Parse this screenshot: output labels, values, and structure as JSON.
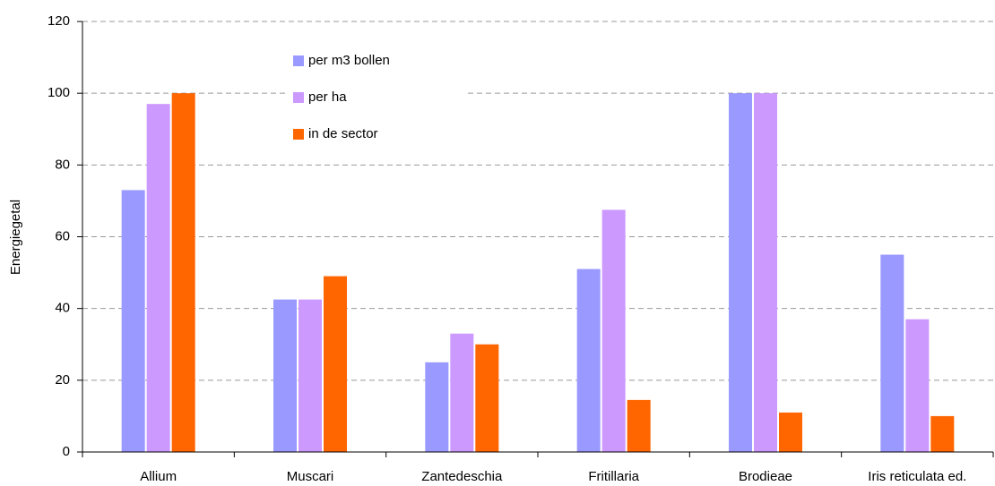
{
  "chart_data": {
    "type": "bar",
    "y_label": "Energiegetal",
    "categories": [
      "Allium",
      "Muscari",
      "Zantedeschia",
      "Fritillaria",
      "Brodieae",
      "Iris reticulata ed."
    ],
    "series": [
      {
        "name": "per m3 bollen",
        "color": "#9999ff",
        "values": [
          73,
          42.5,
          25,
          51,
          100,
          55
        ]
      },
      {
        "name": "per ha",
        "color": "#cc99ff",
        "values": [
          97,
          42.5,
          33,
          67.5,
          100,
          37
        ]
      },
      {
        "name": "in de sector",
        "color": "#ff6600",
        "values": [
          100,
          49,
          30,
          14.5,
          11,
          10
        ]
      }
    ],
    "ylim": [
      0,
      120
    ],
    "yticks": [
      0,
      20,
      40,
      60,
      80,
      100,
      120
    ],
    "grid": true,
    "legend": "top-left"
  }
}
